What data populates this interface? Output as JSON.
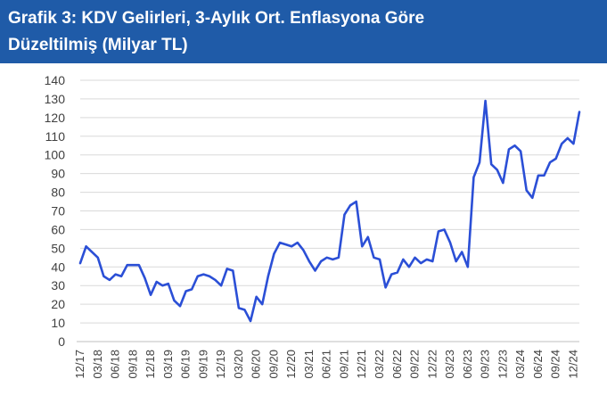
{
  "title": {
    "line1": "Grafik 3: KDV Gelirleri, 3-Aylık Ort. Enflasyona Göre",
    "line2": "Düzeltilmiş (Milyar TL)"
  },
  "colors": {
    "title_bg": "#1f5ba8",
    "line": "#2b4fd6",
    "grid": "#d9d9d9",
    "axis": "#404040"
  },
  "chart_data": {
    "type": "line",
    "title": "Grafik 3: KDV Gelirleri, 3-Aylık Ort. Enflasyona Göre Düzeltilmiş (Milyar TL)",
    "xlabel": "",
    "ylabel": "",
    "ylim": [
      0,
      140
    ],
    "yticks": [
      0,
      10,
      20,
      30,
      40,
      50,
      60,
      70,
      80,
      90,
      100,
      110,
      120,
      130,
      140
    ],
    "grid": true,
    "legend": "none",
    "xticks": [
      "12/17",
      "03/18",
      "06/18",
      "09/18",
      "12/18",
      "03/19",
      "06/19",
      "09/19",
      "12/19",
      "03/20",
      "06/20",
      "09/20",
      "12/20",
      "03/21",
      "06/21",
      "09/21",
      "12/21",
      "03/22",
      "06/22",
      "09/22",
      "12/22",
      "03/23",
      "06/23",
      "09/23",
      "12/23",
      "03/24",
      "06/24",
      "09/24",
      "12/24"
    ],
    "series": [
      {
        "values": [
          42,
          51,
          48,
          45,
          35,
          33,
          36,
          35,
          41,
          41,
          41,
          34,
          25,
          32,
          30,
          31,
          22,
          19,
          27,
          28,
          35,
          36,
          35,
          33,
          30,
          39,
          38,
          18,
          17,
          11,
          24,
          20,
          35,
          47,
          53,
          52,
          51,
          53,
          49,
          43,
          38,
          43,
          45,
          44,
          45,
          68,
          73,
          75,
          51,
          56,
          45,
          44,
          29,
          36,
          37,
          44,
          40,
          45,
          42,
          44,
          43,
          59,
          60,
          53,
          43,
          48,
          40,
          88,
          96,
          129,
          95,
          92,
          85,
          103,
          105,
          102,
          81,
          77,
          89,
          89,
          96,
          98,
          106,
          109,
          106,
          123
        ]
      }
    ]
  }
}
